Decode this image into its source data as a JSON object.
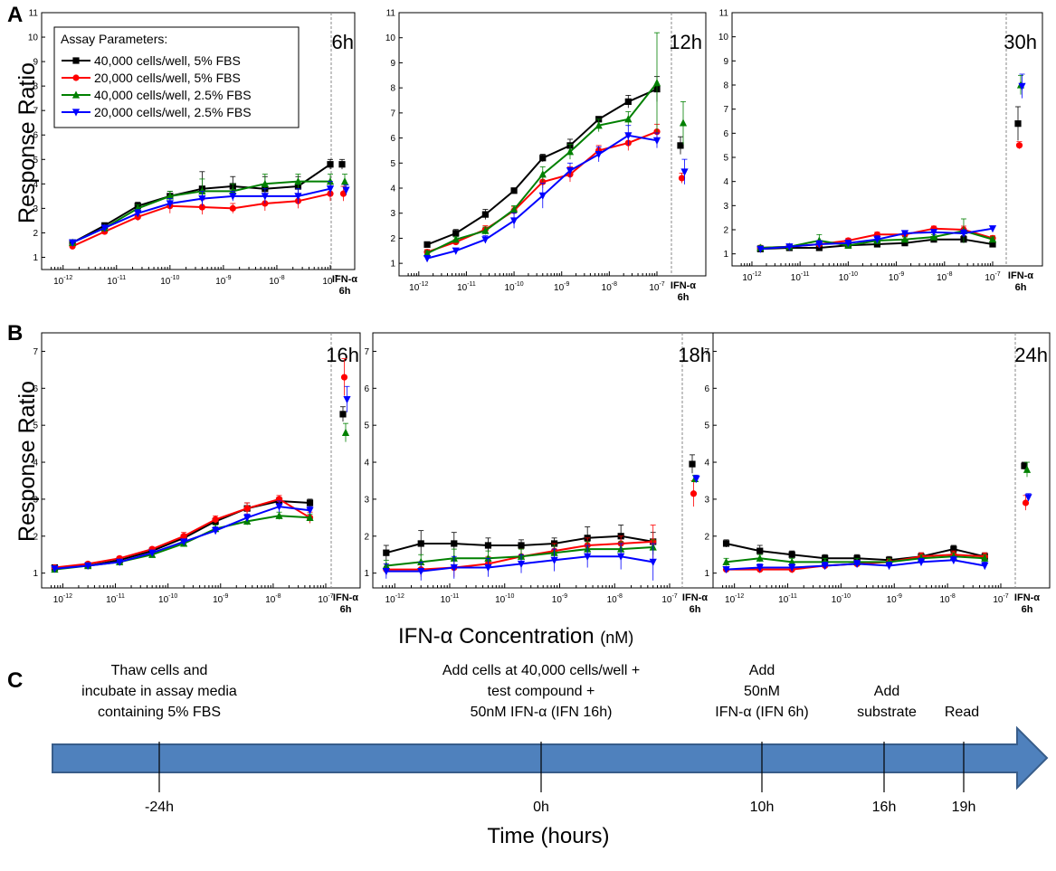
{
  "panel_letters": {
    "a": "A",
    "b": "B",
    "c": "C"
  },
  "legend": {
    "title": "Assay Parameters:",
    "entries": [
      {
        "label": "40,000 cells/well, 5% FBS",
        "color": "#000000",
        "marker": "square"
      },
      {
        "label": "20,000 cells/well, 5% FBS",
        "color": "#ff0000",
        "marker": "circle"
      },
      {
        "label": "40,000 cells/well, 2.5% FBS",
        "color": "#008000",
        "marker": "triangle-up"
      },
      {
        "label": "20,000 cells/well, 2.5% FBS",
        "color": "#0000ff",
        "marker": "triangle-down"
      }
    ]
  },
  "row_a_ylabel": "Response Ratio",
  "row_b_ylabel": "Response Ratio",
  "shared_xlabel_main": "IFN-α Concentration",
  "shared_xlabel_unit": "(nM)",
  "ifn_tick_label_1": "IFN-α",
  "ifn_tick_label_2": "6h",
  "chart_data": [
    {
      "type": "scatter",
      "panel": "A",
      "title": "6h",
      "x_scale": "log",
      "x_ticks": [
        "1e-12",
        "1e-11",
        "1e-10",
        "1e-9",
        "1e-8",
        "1e-7"
      ],
      "ylim": [
        0.5,
        11
      ],
      "y_ticks": [
        1,
        2,
        3,
        4,
        5,
        6,
        7,
        8,
        9,
        10,
        11
      ],
      "x": [
        1.5e-12,
        6e-12,
        2.5e-11,
        1e-10,
        4e-10,
        1.5e-09,
        6e-09,
        2.5e-08,
        1e-07
      ],
      "series": [
        {
          "values": [
            1.6,
            2.3,
            3.1,
            3.5,
            3.8,
            3.9,
            3.8,
            3.9,
            4.8
          ],
          "err": [
            0.1,
            0.1,
            0.15,
            0.2,
            0.7,
            0.4,
            0.5,
            0.4,
            0.2
          ],
          "ctrl": 4.8,
          "ctrl_err": 0.2
        },
        {
          "values": [
            1.45,
            2.05,
            2.65,
            3.1,
            3.05,
            3.0,
            3.2,
            3.3,
            3.6
          ],
          "err": [
            0.1,
            0.1,
            0.15,
            0.3,
            0.3,
            0.2,
            0.3,
            0.3,
            0.3
          ],
          "ctrl": 3.6,
          "ctrl_err": 0.3
        },
        {
          "values": [
            1.6,
            2.2,
            3.0,
            3.5,
            3.7,
            3.7,
            4.0,
            4.1,
            4.1
          ],
          "err": [
            0.1,
            0.1,
            0.15,
            0.2,
            0.5,
            0.3,
            0.4,
            0.3,
            0.3
          ],
          "ctrl": 4.1,
          "ctrl_err": 0.3
        },
        {
          "values": [
            1.6,
            2.2,
            2.8,
            3.2,
            3.4,
            3.5,
            3.5,
            3.5,
            3.8
          ],
          "err": [
            0.1,
            0.1,
            0.15,
            0.2,
            0.3,
            0.2,
            0.3,
            0.3,
            0.3
          ],
          "ctrl": 3.75,
          "ctrl_err": 0.2
        }
      ]
    },
    {
      "type": "scatter",
      "panel": "A",
      "title": "12h",
      "x_scale": "log",
      "x_ticks": [
        "1e-12",
        "1e-11",
        "1e-10",
        "1e-9",
        "1e-8",
        "1e-7"
      ],
      "ylim": [
        0.5,
        11
      ],
      "y_ticks": [
        1,
        2,
        3,
        4,
        5,
        6,
        7,
        8,
        9,
        10,
        11
      ],
      "x": [
        1.5e-12,
        6e-12,
        2.5e-11,
        1e-10,
        4e-10,
        1.5e-09,
        6e-09,
        2.5e-08,
        1e-07
      ],
      "series": [
        {
          "values": [
            1.75,
            2.2,
            2.95,
            3.9,
            5.2,
            5.7,
            6.75,
            7.45,
            7.95
          ],
          "err": [
            0.1,
            0.15,
            0.2,
            0.1,
            0.15,
            0.25,
            0.1,
            0.25,
            0.5
          ],
          "ctrl": 5.7,
          "ctrl_err": 0.35
        },
        {
          "values": [
            1.45,
            1.85,
            2.35,
            3.1,
            4.25,
            4.55,
            5.5,
            5.8,
            6.25
          ],
          "err": [
            0.1,
            0.1,
            0.15,
            0.15,
            0.25,
            0.3,
            0.2,
            0.3,
            0.3
          ],
          "ctrl": 4.4,
          "ctrl_err": 0.2
        },
        {
          "values": [
            1.4,
            1.95,
            2.3,
            3.15,
            4.55,
            5.45,
            6.5,
            6.75,
            8.2
          ],
          "err": [
            0.1,
            0.1,
            0.15,
            0.15,
            0.3,
            0.3,
            0.25,
            0.3,
            2.0
          ],
          "ctrl": 6.6,
          "ctrl_err": 0.85
        },
        {
          "values": [
            1.2,
            1.5,
            1.95,
            2.7,
            3.7,
            4.7,
            5.35,
            6.1,
            5.9
          ],
          "err": [
            0.1,
            0.1,
            0.15,
            0.3,
            0.5,
            0.3,
            0.3,
            0.4,
            0.3
          ],
          "ctrl": 4.65,
          "ctrl_err": 0.5
        }
      ]
    },
    {
      "type": "scatter",
      "panel": "A",
      "title": "30h",
      "x_scale": "log",
      "x_ticks": [
        "1e-12",
        "1e-11",
        "1e-10",
        "1e-9",
        "1e-8",
        "1e-7"
      ],
      "ylim": [
        0.5,
        11
      ],
      "y_ticks": [
        1,
        2,
        3,
        4,
        5,
        6,
        7,
        8,
        9,
        10,
        11
      ],
      "x": [
        1.5e-12,
        6e-12,
        2.5e-11,
        1e-10,
        4e-10,
        1.5e-09,
        6e-09,
        2.5e-08,
        1e-07
      ],
      "series": [
        {
          "values": [
            1.2,
            1.25,
            1.25,
            1.35,
            1.4,
            1.45,
            1.6,
            1.6,
            1.4
          ],
          "err": [
            0.1,
            0.1,
            0.1,
            0.1,
            0.1,
            0.1,
            0.1,
            0.15,
            0.1
          ],
          "ctrl": 6.4,
          "ctrl_err": 0.7
        },
        {
          "values": [
            1.25,
            1.3,
            1.4,
            1.55,
            1.8,
            1.8,
            2.05,
            2.0,
            1.65
          ],
          "err": [
            0.1,
            0.1,
            0.15,
            0.1,
            0.1,
            0.1,
            0.1,
            0.15,
            0.1
          ],
          "ctrl": 5.5,
          "ctrl_err": 0.15
        },
        {
          "values": [
            1.25,
            1.3,
            1.55,
            1.35,
            1.55,
            1.6,
            1.7,
            1.95,
            1.6
          ],
          "err": [
            0.1,
            0.1,
            0.25,
            0.1,
            0.15,
            0.1,
            0.1,
            0.5,
            0.1
          ],
          "ctrl": 8.0,
          "ctrl_err": 0.4
        },
        {
          "values": [
            1.2,
            1.3,
            1.4,
            1.45,
            1.6,
            1.85,
            1.9,
            1.85,
            2.05
          ],
          "err": [
            0.1,
            0.1,
            0.15,
            0.1,
            0.15,
            0.1,
            0.1,
            0.15,
            0.1
          ],
          "ctrl": 7.95,
          "ctrl_err": 0.5
        }
      ]
    },
    {
      "type": "scatter",
      "panel": "B",
      "title": "16h",
      "x_scale": "log",
      "x_ticks": [
        "1e-12",
        "1e-11",
        "1e-10",
        "1e-9",
        "1e-8",
        "1e-7"
      ],
      "ylim": [
        0.6,
        7.5
      ],
      "y_ticks": [
        1,
        2,
        3,
        4,
        5,
        6,
        7
      ],
      "x": [
        7e-13,
        3e-12,
        1.2e-11,
        5e-11,
        2e-10,
        8e-10,
        3.2e-09,
        1.3e-08,
        5e-08
      ],
      "series": [
        {
          "values": [
            1.15,
            1.2,
            1.35,
            1.6,
            1.95,
            2.4,
            2.75,
            2.95,
            2.9
          ],
          "err": [
            0.05,
            0.05,
            0.05,
            0.05,
            0.05,
            0.1,
            0.15,
            0.1,
            0.1
          ],
          "ctrl": 5.3,
          "ctrl_err": 0.2
        },
        {
          "values": [
            1.15,
            1.25,
            1.4,
            1.65,
            2.0,
            2.45,
            2.75,
            3.0,
            2.5
          ],
          "err": [
            0.05,
            0.05,
            0.05,
            0.05,
            0.1,
            0.1,
            0.15,
            0.1,
            0.15
          ],
          "ctrl": 6.3,
          "ctrl_err": 0.5
        },
        {
          "values": [
            1.1,
            1.2,
            1.3,
            1.5,
            1.8,
            2.2,
            2.4,
            2.55,
            2.5
          ],
          "err": [
            0.05,
            0.05,
            0.05,
            0.05,
            0.05,
            0.1,
            0.1,
            0.1,
            0.1
          ],
          "ctrl": 4.8,
          "ctrl_err": 0.25
        },
        {
          "values": [
            1.12,
            1.2,
            1.3,
            1.55,
            1.85,
            2.15,
            2.5,
            2.8,
            2.7
          ],
          "err": [
            0.05,
            0.05,
            0.05,
            0.05,
            0.05,
            0.1,
            0.1,
            0.15,
            0.1
          ],
          "ctrl": 5.7,
          "ctrl_err": 0.35
        }
      ]
    },
    {
      "type": "scatter",
      "panel": "B",
      "title": "18h",
      "x_scale": "log",
      "x_ticks": [
        "1e-12",
        "1e-11",
        "1e-10",
        "1e-9",
        "1e-8",
        "1e-7"
      ],
      "ylim": [
        0.6,
        7.5
      ],
      "y_ticks": [
        1,
        2,
        3,
        4,
        5,
        6,
        7
      ],
      "x": [
        7e-13,
        3e-12,
        1.2e-11,
        5e-11,
        2e-10,
        8e-10,
        3.2e-09,
        1.3e-08,
        5e-08
      ],
      "series": [
        {
          "values": [
            1.55,
            1.8,
            1.8,
            1.75,
            1.75,
            1.8,
            1.95,
            2.0,
            1.85
          ],
          "err": [
            0.2,
            0.35,
            0.3,
            0.2,
            0.15,
            0.15,
            0.3,
            0.3,
            0.25
          ],
          "ctrl": 3.95,
          "ctrl_err": 0.25
        },
        {
          "values": [
            1.1,
            1.1,
            1.15,
            1.25,
            1.45,
            1.6,
            1.75,
            1.8,
            1.85
          ],
          "err": [
            0.15,
            0.2,
            0.25,
            0.2,
            0.2,
            0.2,
            0.2,
            0.2,
            0.45
          ],
          "ctrl": 3.15,
          "ctrl_err": 0.35
        },
        {
          "values": [
            1.2,
            1.3,
            1.4,
            1.4,
            1.45,
            1.55,
            1.65,
            1.65,
            1.7
          ],
          "err": [
            0.15,
            0.2,
            0.25,
            0.2,
            0.2,
            0.2,
            0.2,
            0.2,
            0.2
          ],
          "ctrl": 3.55,
          "ctrl_err": 0.1
        },
        {
          "values": [
            1.05,
            1.05,
            1.15,
            1.15,
            1.25,
            1.35,
            1.45,
            1.45,
            1.3
          ],
          "err": [
            0.2,
            0.25,
            0.3,
            0.25,
            0.25,
            0.3,
            0.3,
            0.35,
            0.5
          ],
          "ctrl": 3.55,
          "ctrl_err": 0.1
        }
      ]
    },
    {
      "type": "scatter",
      "panel": "B",
      "title": "24h",
      "x_scale": "log",
      "x_ticks": [
        "1e-12",
        "1e-11",
        "1e-10",
        "1e-9",
        "1e-8",
        "1e-7"
      ],
      "ylim": [
        0.6,
        7.5
      ],
      "y_ticks": [
        1,
        2,
        3,
        4,
        5,
        6,
        7
      ],
      "x": [
        7e-13,
        3e-12,
        1.2e-11,
        5e-11,
        2e-10,
        8e-10,
        3.2e-09,
        1.3e-08,
        5e-08
      ],
      "series": [
        {
          "values": [
            1.8,
            1.6,
            1.5,
            1.4,
            1.4,
            1.35,
            1.45,
            1.65,
            1.45
          ],
          "err": [
            0.1,
            0.15,
            0.1,
            0.1,
            0.1,
            0.1,
            0.1,
            0.1,
            0.1
          ],
          "ctrl": 3.9,
          "ctrl_err": 0.1
        },
        {
          "values": [
            1.1,
            1.1,
            1.1,
            1.2,
            1.25,
            1.3,
            1.45,
            1.5,
            1.45
          ],
          "err": [
            0.05,
            0.1,
            0.1,
            0.1,
            0.1,
            0.1,
            0.1,
            0.1,
            0.1
          ],
          "ctrl": 2.9,
          "ctrl_err": 0.2
        },
        {
          "values": [
            1.3,
            1.4,
            1.3,
            1.3,
            1.3,
            1.3,
            1.4,
            1.45,
            1.4
          ],
          "err": [
            0.1,
            0.1,
            0.1,
            0.1,
            0.1,
            0.1,
            0.1,
            0.1,
            0.1
          ],
          "ctrl": 3.8,
          "ctrl_err": 0.2
        },
        {
          "values": [
            1.1,
            1.15,
            1.15,
            1.2,
            1.25,
            1.2,
            1.3,
            1.35,
            1.2
          ],
          "err": [
            0.05,
            0.1,
            0.1,
            0.1,
            0.1,
            0.1,
            0.1,
            0.1,
            0.1
          ],
          "ctrl": 3.05,
          "ctrl_err": 0.1
        }
      ]
    }
  ],
  "timeline": {
    "arrow_color": "#4f81bd",
    "arrow_border": "#385d8a",
    "axis_label": "Time (hours)",
    "events": [
      {
        "time": "-24h",
        "lines": [
          "Thaw cells and",
          "incubate in assay media",
          "containing 5% FBS"
        ]
      },
      {
        "time": "0h",
        "lines": [
          "Add cells at 40,000 cells/well +",
          "test compound +",
          "50nM IFN-α (IFN 16h)"
        ]
      },
      {
        "time": "10h",
        "lines": [
          "Add",
          "50nM",
          "IFN-α (IFN 6h)"
        ]
      },
      {
        "time": "16h",
        "lines": [
          "Add",
          "substrate"
        ]
      },
      {
        "time": "19h",
        "lines": [
          "Read"
        ]
      }
    ]
  }
}
